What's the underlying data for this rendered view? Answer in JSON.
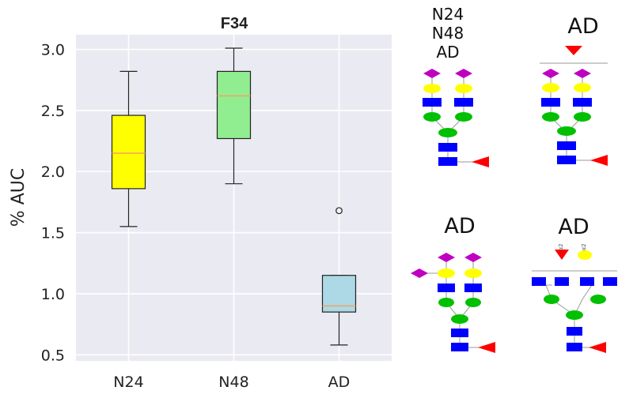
{
  "chart_data": {
    "type": "box",
    "title": "F34",
    "ylabel": "% AUC",
    "xlabel": "",
    "ylim": [
      0.45,
      3.12
    ],
    "yticks": [
      0.5,
      1.0,
      1.5,
      2.0,
      2.5,
      3.0
    ],
    "yticklabels": [
      "0.5",
      "1.0",
      "1.5",
      "2.0",
      "2.5",
      "3.0"
    ],
    "categories": [
      "N24",
      "N48",
      "AD"
    ],
    "boxes": [
      {
        "group": "N24",
        "whislo": 1.55,
        "q1": 1.86,
        "median": 2.15,
        "q3": 2.46,
        "whishi": 2.82,
        "fliers": [],
        "color": "#ffff00"
      },
      {
        "group": "N48",
        "whislo": 1.9,
        "q1": 2.27,
        "median": 2.62,
        "q3": 2.82,
        "whishi": 3.01,
        "fliers": [],
        "color": "#90ee90"
      },
      {
        "group": "AD",
        "whislo": 0.58,
        "q1": 0.85,
        "median": 0.9,
        "q3": 1.15,
        "whishi": 1.15,
        "fliers": [
          1.68
        ],
        "color": "#add8e6"
      }
    ],
    "grid": true,
    "background": "#eaeaf2",
    "median_color": "#f4a460"
  },
  "glycan_panels": [
    {
      "labels": [
        "N24",
        "N48",
        "AD"
      ]
    },
    {
      "labels": [
        "AD"
      ]
    },
    {
      "labels": [
        "AD"
      ]
    },
    {
      "labels": [
        "AD"
      ]
    }
  ],
  "linkage_labels": [
    "α2",
    "α2"
  ],
  "colors": {
    "sialic_acid": "#c000c0",
    "galactose": "#ffff00",
    "glcnac": "#0000ff",
    "mannose": "#00c000",
    "fucose": "#ff0000"
  }
}
